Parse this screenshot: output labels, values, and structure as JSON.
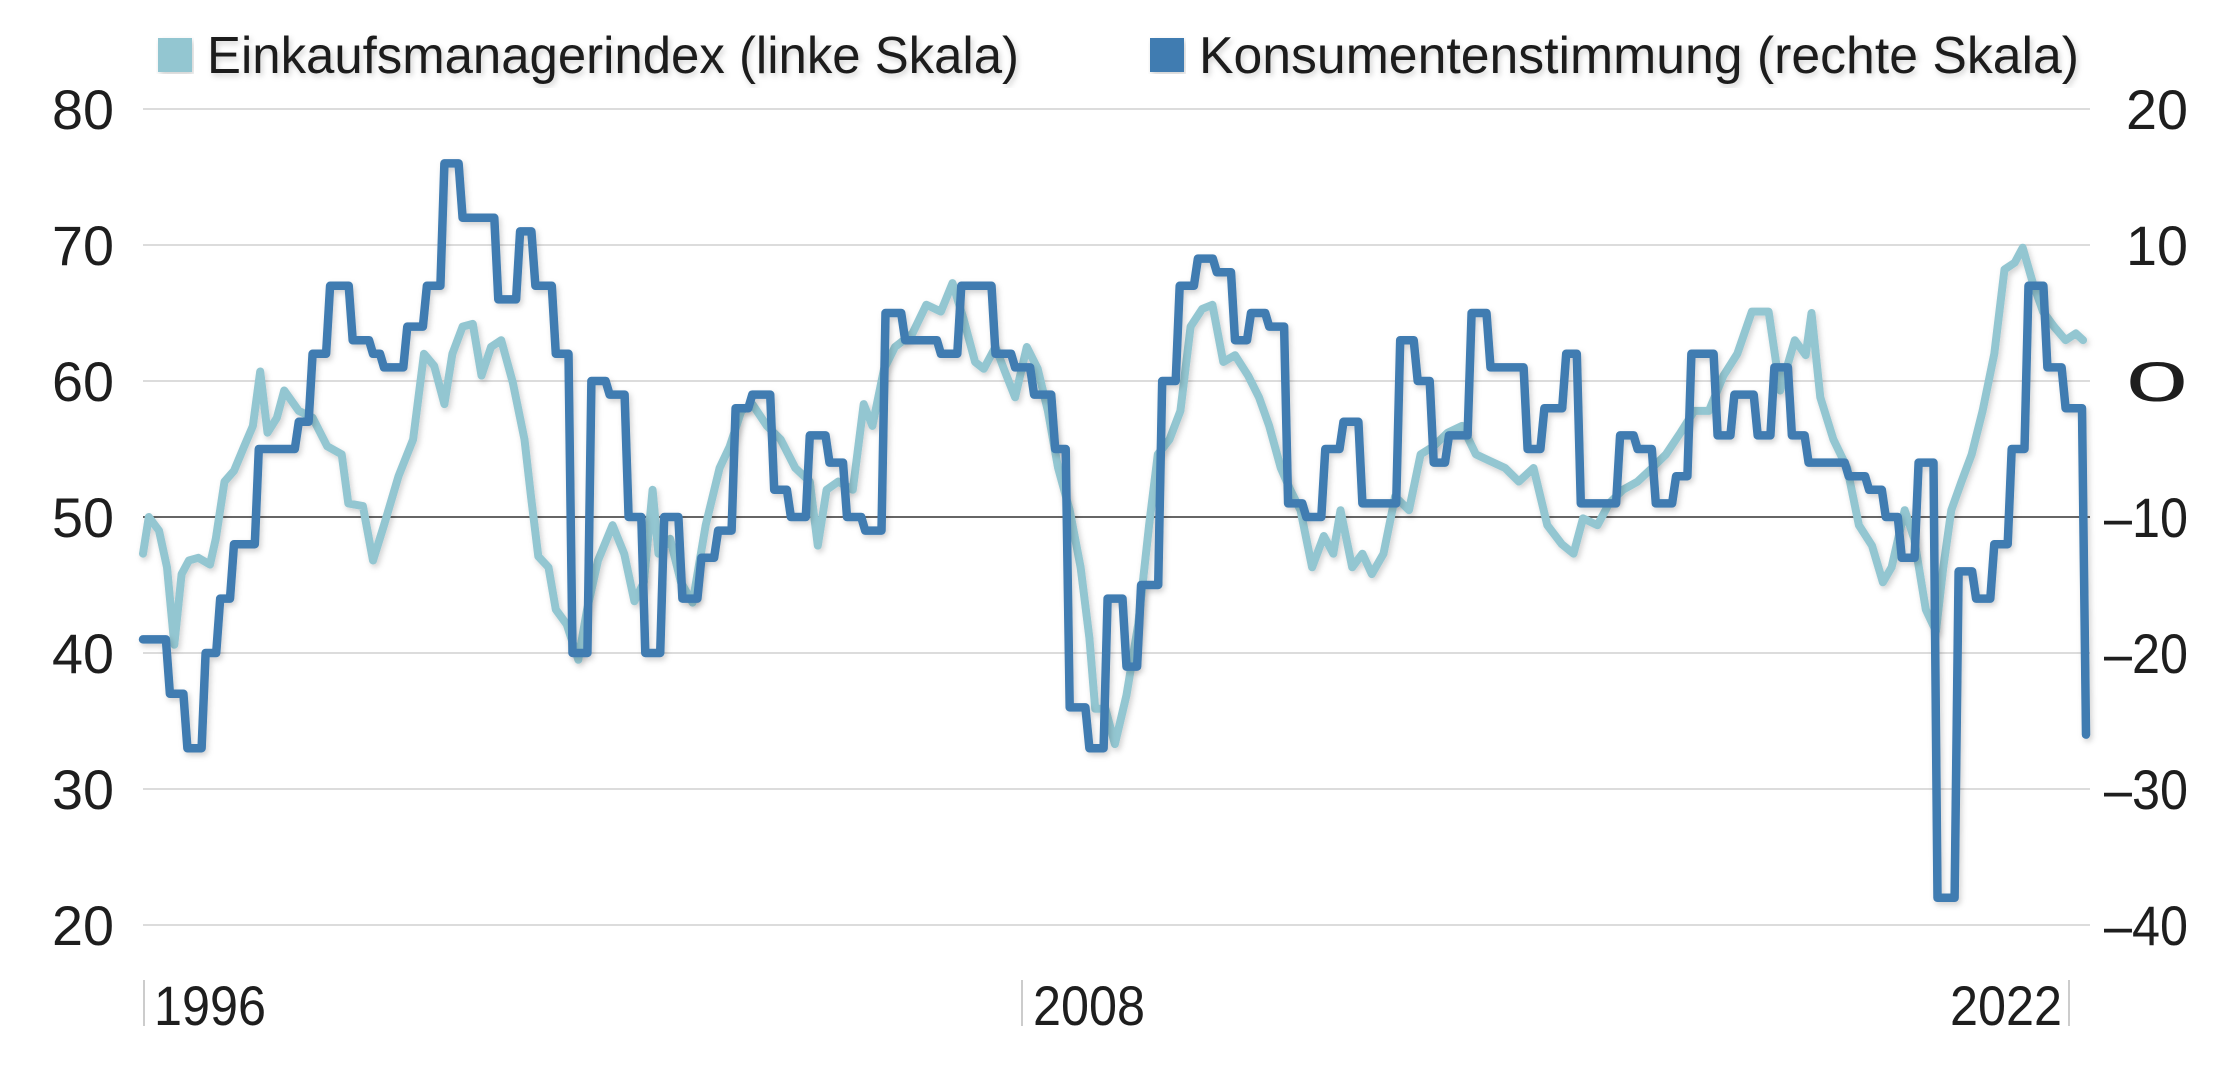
{
  "chart_data": {
    "type": "line",
    "title": "",
    "xlabel": "",
    "ylabel_left": "",
    "ylabel_right": "",
    "x_ticks": [
      "1996",
      "2008",
      "2022"
    ],
    "xlim": [
      1996.0,
      2022.69
    ],
    "y_left": {
      "lim": [
        20,
        80
      ],
      "ticks": [
        "80",
        "70",
        "60",
        "50",
        "40",
        "30",
        "20"
      ],
      "tick_values": [
        80,
        70,
        60,
        50,
        40,
        30,
        20
      ]
    },
    "y_right": {
      "lim": [
        -40,
        20
      ],
      "ticks": [
        "20",
        "10",
        "0",
        "–10",
        "–20",
        "–30",
        "–40"
      ],
      "tick_values": [
        20,
        10,
        0,
        -10,
        -20,
        -30,
        -40
      ]
    },
    "grid": true,
    "reference_line_left": 50,
    "legend_position": "top",
    "series": [
      {
        "name": "Einkaufsmanagerindex (linke Skala)",
        "axis": "left",
        "color": "#93c6d1",
        "points": [
          [
            1996.0,
            47.3
          ],
          [
            1996.08,
            50
          ],
          [
            1996.22,
            49
          ],
          [
            1996.33,
            46.3
          ],
          [
            1996.43,
            40.6
          ],
          [
            1996.53,
            45.8
          ],
          [
            1996.63,
            46.8
          ],
          [
            1996.76,
            47
          ],
          [
            1996.92,
            46.5
          ],
          [
            1997.0,
            48.4
          ],
          [
            1997.12,
            52.6
          ],
          [
            1997.25,
            53.4
          ],
          [
            1997.39,
            55.2
          ],
          [
            1997.51,
            56.7
          ],
          [
            1997.61,
            60.7
          ],
          [
            1997.71,
            56.2
          ],
          [
            1997.84,
            57.3
          ],
          [
            1997.94,
            59.3
          ],
          [
            1998.14,
            57.8
          ],
          [
            1998.33,
            57.3
          ],
          [
            1998.53,
            55.2
          ],
          [
            1998.73,
            54.6
          ],
          [
            1998.82,
            51
          ],
          [
            1999.02,
            50.8
          ],
          [
            1999.16,
            46.8
          ],
          [
            1999.31,
            49.4
          ],
          [
            1999.51,
            53
          ],
          [
            1999.71,
            55.7
          ],
          [
            1999.86,
            62
          ],
          [
            2000.0,
            61.1
          ],
          [
            2000.14,
            58.3
          ],
          [
            2000.25,
            62
          ],
          [
            2000.39,
            64
          ],
          [
            2000.53,
            64.2
          ],
          [
            2000.65,
            60.4
          ],
          [
            2000.78,
            62.5
          ],
          [
            2000.92,
            63
          ],
          [
            2001.08,
            59.9
          ],
          [
            2001.24,
            55.7
          ],
          [
            2001.33,
            51.5
          ],
          [
            2001.43,
            47.1
          ],
          [
            2001.57,
            46.3
          ],
          [
            2001.67,
            43.2
          ],
          [
            2001.82,
            42.1
          ],
          [
            2001.98,
            39.5
          ],
          [
            2002.1,
            43.2
          ],
          [
            2002.25,
            46.8
          ],
          [
            2002.45,
            49.4
          ],
          [
            2002.61,
            47.3
          ],
          [
            2002.75,
            43.8
          ],
          [
            2002.88,
            45.2
          ],
          [
            2003.0,
            52
          ],
          [
            2003.08,
            47.3
          ],
          [
            2003.24,
            48.4
          ],
          [
            2003.39,
            45.2
          ],
          [
            2003.55,
            43.7
          ],
          [
            2003.73,
            49.4
          ],
          [
            2003.92,
            53.6
          ],
          [
            2004.06,
            55.2
          ],
          [
            2004.22,
            57.8
          ],
          [
            2004.37,
            58.3
          ],
          [
            2004.57,
            56.7
          ],
          [
            2004.76,
            55.7
          ],
          [
            2004.96,
            53.6
          ],
          [
            2005.16,
            52.6
          ],
          [
            2005.27,
            47.9
          ],
          [
            2005.39,
            52
          ],
          [
            2005.55,
            52.6
          ],
          [
            2005.75,
            52
          ],
          [
            2005.9,
            58.3
          ],
          [
            2006.02,
            56.7
          ],
          [
            2006.18,
            60.9
          ],
          [
            2006.33,
            62.5
          ],
          [
            2006.57,
            63.5
          ],
          [
            2006.76,
            65.6
          ],
          [
            2006.96,
            65.1
          ],
          [
            2007.12,
            67.2
          ],
          [
            2007.27,
            64.6
          ],
          [
            2007.43,
            61.4
          ],
          [
            2007.55,
            60.9
          ],
          [
            2007.71,
            62.5
          ],
          [
            2007.84,
            60.7
          ],
          [
            2007.98,
            58.8
          ],
          [
            2008.14,
            62.5
          ],
          [
            2008.29,
            60.9
          ],
          [
            2008.43,
            57.8
          ],
          [
            2008.57,
            53.6
          ],
          [
            2008.73,
            50.5
          ],
          [
            2008.88,
            46.3
          ],
          [
            2009.0,
            41.1
          ],
          [
            2009.08,
            35.9
          ],
          [
            2009.22,
            35.9
          ],
          [
            2009.35,
            33.3
          ],
          [
            2009.51,
            36.9
          ],
          [
            2009.67,
            42.1
          ],
          [
            2009.82,
            49.4
          ],
          [
            2009.94,
            54.6
          ],
          [
            2010.1,
            55.7
          ],
          [
            2010.25,
            57.8
          ],
          [
            2010.39,
            64
          ],
          [
            2010.55,
            65.3
          ],
          [
            2010.69,
            65.6
          ],
          [
            2010.84,
            61.4
          ],
          [
            2011.0,
            61.9
          ],
          [
            2011.18,
            60.4
          ],
          [
            2011.33,
            58.8
          ],
          [
            2011.47,
            56.7
          ],
          [
            2011.63,
            53.6
          ],
          [
            2011.76,
            52
          ],
          [
            2011.9,
            50.5
          ],
          [
            2012.06,
            46.3
          ],
          [
            2012.22,
            48.6
          ],
          [
            2012.35,
            47.3
          ],
          [
            2012.45,
            50.5
          ],
          [
            2012.61,
            46.3
          ],
          [
            2012.75,
            47.3
          ],
          [
            2012.88,
            45.8
          ],
          [
            2013.04,
            47.3
          ],
          [
            2013.2,
            51.5
          ],
          [
            2013.39,
            50.5
          ],
          [
            2013.55,
            54.6
          ],
          [
            2013.73,
            55.2
          ],
          [
            2013.92,
            56.2
          ],
          [
            2014.12,
            56.7
          ],
          [
            2014.31,
            54.6
          ],
          [
            2014.51,
            54.1
          ],
          [
            2014.71,
            53.6
          ],
          [
            2014.9,
            52.6
          ],
          [
            2015.1,
            53.6
          ],
          [
            2015.29,
            49.4
          ],
          [
            2015.49,
            48
          ],
          [
            2015.65,
            47.3
          ],
          [
            2015.78,
            49.9
          ],
          [
            2015.98,
            49.4
          ],
          [
            2016.14,
            51
          ],
          [
            2016.33,
            52
          ],
          [
            2016.53,
            52.6
          ],
          [
            2016.73,
            53.6
          ],
          [
            2016.92,
            54.6
          ],
          [
            2017.12,
            56.2
          ],
          [
            2017.31,
            57.8
          ],
          [
            2017.51,
            57.8
          ],
          [
            2017.71,
            60.4
          ],
          [
            2017.9,
            62
          ],
          [
            2018.1,
            65.1
          ],
          [
            2018.33,
            65.1
          ],
          [
            2018.49,
            59.3
          ],
          [
            2018.69,
            63
          ],
          [
            2018.84,
            61.9
          ],
          [
            2018.92,
            65
          ],
          [
            2019.04,
            58.8
          ],
          [
            2019.22,
            55.7
          ],
          [
            2019.41,
            53.6
          ],
          [
            2019.57,
            49.4
          ],
          [
            2019.75,
            47.9
          ],
          [
            2019.9,
            45.2
          ],
          [
            2020.02,
            46.3
          ],
          [
            2020.2,
            50.5
          ],
          [
            2020.33,
            48.4
          ],
          [
            2020.49,
            43.2
          ],
          [
            2020.63,
            41.6
          ],
          [
            2020.73,
            46.3
          ],
          [
            2020.84,
            50.5
          ],
          [
            2020.98,
            52.6
          ],
          [
            2021.12,
            54.6
          ],
          [
            2021.27,
            57.8
          ],
          [
            2021.43,
            62
          ],
          [
            2021.57,
            68.2
          ],
          [
            2021.71,
            68.7
          ],
          [
            2021.82,
            69.8
          ],
          [
            2021.96,
            67.2
          ],
          [
            2022.1,
            65.1
          ],
          [
            2022.25,
            64
          ],
          [
            2022.41,
            63
          ],
          [
            2022.55,
            63.5
          ],
          [
            2022.65,
            63
          ]
        ]
      },
      {
        "name": "Konsumentenstimmung (rechte Skala)",
        "axis": "right",
        "color": "#3f7bb1",
        "steps": [
          [
            1996.0,
            -19
          ],
          [
            1996.37,
            -23
          ],
          [
            1996.61,
            -27
          ],
          [
            1996.86,
            -20
          ],
          [
            1997.06,
            -16
          ],
          [
            1997.25,
            -12
          ],
          [
            1997.59,
            -5
          ],
          [
            1998.14,
            -3
          ],
          [
            1998.33,
            2
          ],
          [
            1998.57,
            7
          ],
          [
            1998.88,
            3
          ],
          [
            1999.16,
            2
          ],
          [
            1999.31,
            1
          ],
          [
            1999.63,
            4
          ],
          [
            1999.9,
            7
          ],
          [
            2000.14,
            16
          ],
          [
            2000.39,
            12
          ],
          [
            2000.88,
            6
          ],
          [
            2001.18,
            11
          ],
          [
            2001.39,
            7
          ],
          [
            2001.67,
            2
          ],
          [
            2001.9,
            -20
          ],
          [
            2002.16,
            0
          ],
          [
            2002.41,
            -1
          ],
          [
            2002.67,
            -10
          ],
          [
            2002.9,
            -20
          ],
          [
            2003.16,
            -10
          ],
          [
            2003.41,
            -16
          ],
          [
            2003.67,
            -13
          ],
          [
            2003.9,
            -11
          ],
          [
            2004.14,
            -2
          ],
          [
            2004.37,
            -1
          ],
          [
            2004.67,
            -8
          ],
          [
            2004.9,
            -10
          ],
          [
            2005.16,
            -4
          ],
          [
            2005.43,
            -6
          ],
          [
            2005.67,
            -10
          ],
          [
            2005.92,
            -11
          ],
          [
            2006.2,
            5
          ],
          [
            2006.47,
            3
          ],
          [
            2006.96,
            2
          ],
          [
            2007.24,
            7
          ],
          [
            2007.71,
            2
          ],
          [
            2007.98,
            1
          ],
          [
            2008.24,
            -1
          ],
          [
            2008.53,
            -5
          ],
          [
            2008.73,
            -24
          ],
          [
            2009.0,
            -27
          ],
          [
            2009.25,
            -16
          ],
          [
            2009.51,
            -21
          ],
          [
            2009.71,
            -15
          ],
          [
            2010.0,
            0
          ],
          [
            2010.24,
            7
          ],
          [
            2010.49,
            9
          ],
          [
            2010.75,
            8
          ],
          [
            2011.0,
            3
          ],
          [
            2011.22,
            5
          ],
          [
            2011.47,
            4
          ],
          [
            2011.73,
            -9
          ],
          [
            2011.98,
            -10
          ],
          [
            2012.24,
            -5
          ],
          [
            2012.49,
            -3
          ],
          [
            2012.75,
            -9
          ],
          [
            2013.27,
            3
          ],
          [
            2013.51,
            0
          ],
          [
            2013.73,
            -6
          ],
          [
            2013.94,
            -4
          ],
          [
            2014.25,
            5
          ],
          [
            2014.51,
            1
          ],
          [
            2015.02,
            -5
          ],
          [
            2015.25,
            -2
          ],
          [
            2015.55,
            2
          ],
          [
            2015.75,
            -9
          ],
          [
            2016.29,
            -4
          ],
          [
            2016.53,
            -5
          ],
          [
            2016.78,
            -9
          ],
          [
            2017.06,
            -7
          ],
          [
            2017.27,
            2
          ],
          [
            2017.63,
            -4
          ],
          [
            2017.86,
            -1
          ],
          [
            2018.18,
            -4
          ],
          [
            2018.41,
            1
          ],
          [
            2018.65,
            -4
          ],
          [
            2018.88,
            -6
          ],
          [
            2019.43,
            -7
          ],
          [
            2019.71,
            -8
          ],
          [
            2019.94,
            -10
          ],
          [
            2020.16,
            -13
          ],
          [
            2020.39,
            -6
          ],
          [
            2020.65,
            -38
          ],
          [
            2020.94,
            -14
          ],
          [
            2021.18,
            -16
          ],
          [
            2021.43,
            -12
          ],
          [
            2021.67,
            -5
          ],
          [
            2021.9,
            7
          ],
          [
            2022.16,
            1
          ],
          [
            2022.41,
            -2
          ],
          [
            2022.69,
            -26
          ]
        ]
      }
    ]
  }
}
